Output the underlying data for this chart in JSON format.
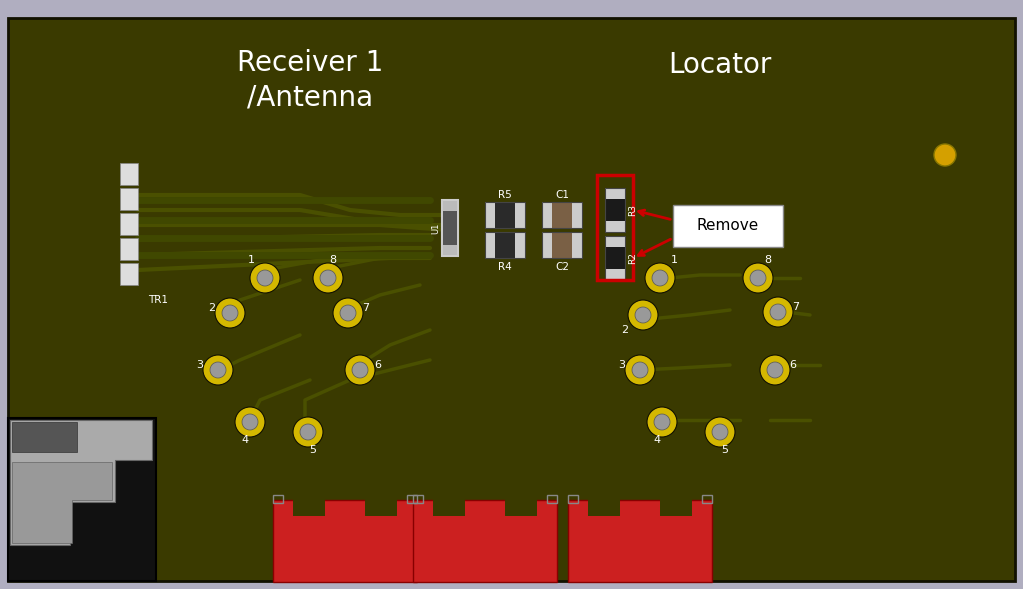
{
  "bg_outer": "#b0aec0",
  "bg_board": "#3a3a00",
  "title_left": "Receiver 1\n/Antenna",
  "title_right": "Locator",
  "title_color": "#ffffff",
  "title_fontsize": 20,
  "remove_text": "Remove",
  "arrow_color": "#cc0000",
  "red_box_color": "#cc0000",
  "trace_color": "#4a5000",
  "pad_yellow": "#e8d800",
  "pad_inner": "#aaaaaa",
  "connector_white": "#dddddd",
  "led_color": "#d4a000"
}
